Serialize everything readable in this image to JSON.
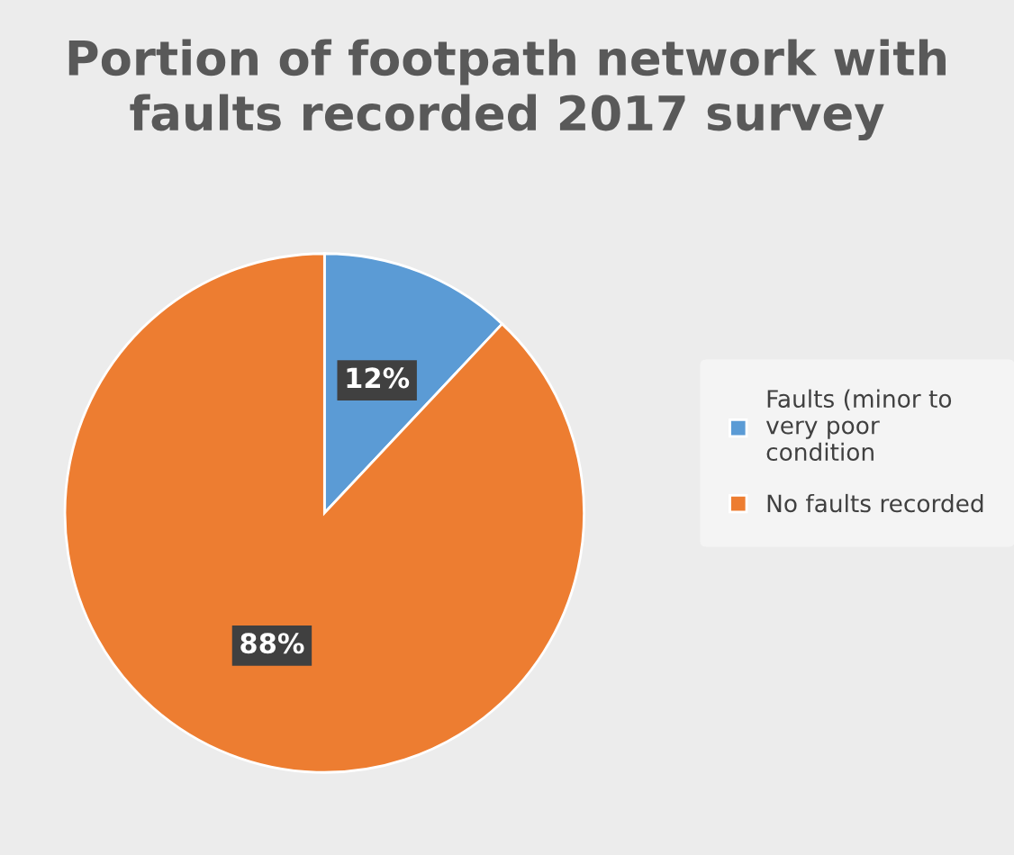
{
  "chart_data": {
    "type": "pie",
    "title": "Portion of footpath network with\nfaults recorded 2017 survey",
    "categories": [
      "Faults (minor to\nvery poor\ncondition",
      "No faults recorded"
    ],
    "values": [
      12,
      88
    ],
    "colors": [
      "#5b9bd5",
      "#ed7d31"
    ],
    "value_labels": [
      "12%",
      "88%"
    ],
    "legend": "right"
  }
}
